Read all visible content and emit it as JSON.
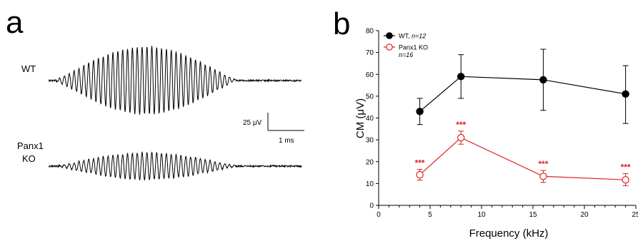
{
  "panel_a": {
    "letter": "a",
    "wt_label": "WT",
    "ko_label_line1": "Panx1",
    "ko_label_line2": "KO",
    "scale_y_label": "25 μV",
    "scale_x_label": "1 ms",
    "trace_color": "#000000"
  },
  "panel_b": {
    "letter": "b"
  },
  "chart_data": [
    {
      "type": "line",
      "title": "",
      "xlabel": "Frequency (kHz)",
      "ylabel": "CM (μV)",
      "xlim": [
        0,
        25
      ],
      "ylim": [
        0,
        80
      ],
      "x_ticks": [
        "0",
        "5",
        "10",
        "15",
        "20",
        "25"
      ],
      "y_ticks": [
        "0",
        "10",
        "20",
        "30",
        "40",
        "50",
        "60",
        "70",
        "80"
      ],
      "grid": false,
      "legend_position": "top-left",
      "legend": [
        {
          "name": "WT,",
          "n_label": "n=12"
        },
        {
          "name": "Panx1 KO",
          "n_label": "n=16"
        }
      ],
      "series": [
        {
          "name": "WT",
          "color": "#000000",
          "marker": "filled-circle",
          "x": [
            4,
            8,
            16,
            24
          ],
          "y": [
            43,
            59,
            57.5,
            51
          ],
          "err_low": [
            37,
            49,
            43.5,
            37.5
          ],
          "err_high": [
            49,
            69,
            71.5,
            64
          ]
        },
        {
          "name": "Panx1 KO",
          "color": "#e02020",
          "marker": "open-circle",
          "x": [
            4,
            8,
            16,
            24
          ],
          "y": [
            14,
            31,
            13.3,
            11.7
          ],
          "err_low": [
            11.5,
            28,
            10.5,
            9
          ],
          "err_high": [
            16.5,
            34,
            16,
            14.5
          ],
          "annotations": [
            "***",
            "***",
            "***",
            "***"
          ]
        }
      ]
    }
  ]
}
